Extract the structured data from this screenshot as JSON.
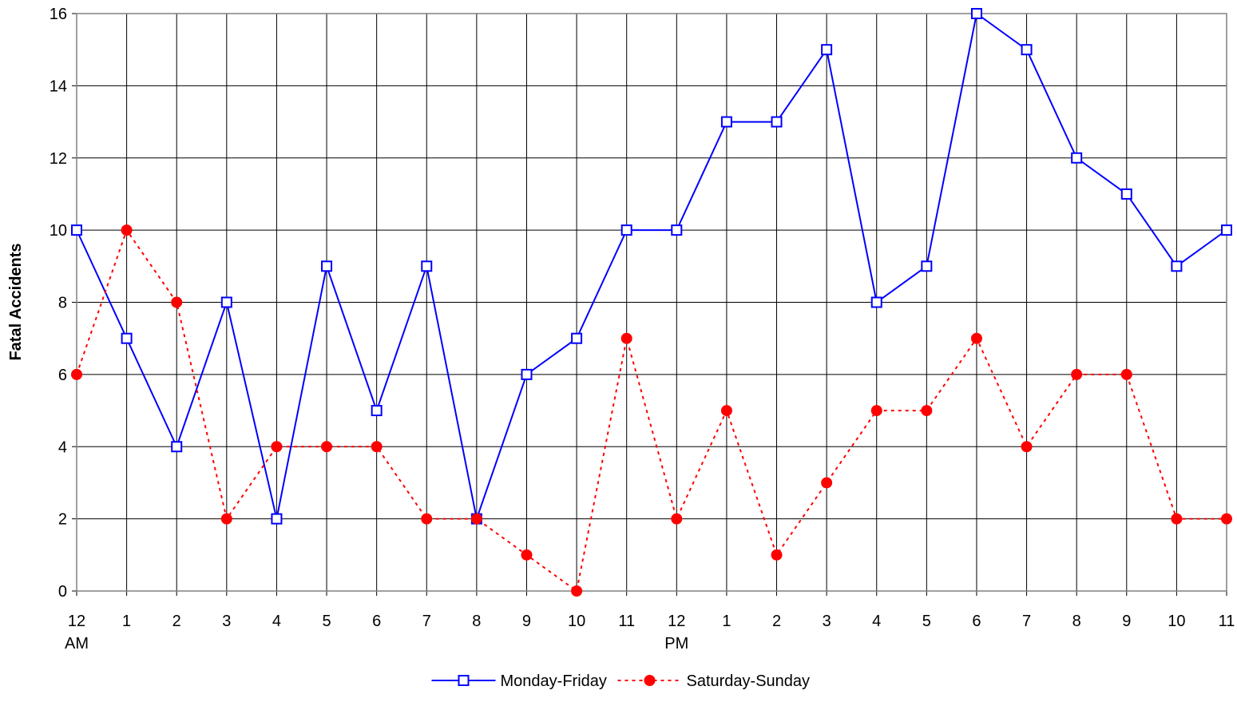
{
  "chart_data": {
    "type": "line",
    "y_label": "Fatal Accidents",
    "categories": [
      "12\nAM",
      "1",
      "2",
      "3",
      "4",
      "5",
      "6",
      "7",
      "8",
      "9",
      "10",
      "11",
      "12\nPM",
      "1",
      "2",
      "3",
      "4",
      "5",
      "6",
      "7",
      "8",
      "9",
      "10",
      "11"
    ],
    "series": [
      {
        "name": "Monday-Friday",
        "color": "#0000ff",
        "dash": false,
        "marker": "square",
        "values": [
          10,
          7,
          4,
          8,
          2,
          9,
          5,
          9,
          2,
          6,
          7,
          10,
          10,
          13,
          13,
          15,
          8,
          9,
          16,
          15,
          12,
          11,
          9,
          10
        ]
      },
      {
        "name": "Saturday-Sunday",
        "color": "#ff0000",
        "dash": true,
        "marker": "circle",
        "values": [
          6,
          10,
          8,
          2,
          4,
          4,
          4,
          2,
          2,
          1,
          0,
          7,
          2,
          5,
          1,
          3,
          5,
          5,
          7,
          4,
          6,
          6,
          2,
          2
        ]
      }
    ],
    "ylim": [
      0,
      16
    ],
    "yticks": [
      0,
      2,
      4,
      6,
      8,
      10,
      12,
      14,
      16
    ],
    "grid": true,
    "legend": "bottom"
  }
}
